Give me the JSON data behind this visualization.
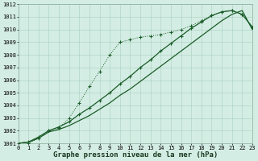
{
  "title": "Graphe pression niveau de la mer (hPa)",
  "background_color": "#d4ede4",
  "grid_color": "#a8cfc0",
  "line_color": "#1a5c28",
  "x_values": [
    0,
    1,
    2,
    3,
    4,
    5,
    6,
    7,
    8,
    9,
    10,
    11,
    12,
    13,
    14,
    15,
    16,
    17,
    18,
    19,
    20,
    21,
    22,
    23
  ],
  "line1_solid": [
    1001.0,
    1001.1,
    1001.4,
    1001.9,
    1002.1,
    1002.4,
    1002.8,
    1003.2,
    1003.7,
    1004.2,
    1004.8,
    1005.3,
    1005.9,
    1006.5,
    1007.1,
    1007.7,
    1008.3,
    1008.9,
    1009.5,
    1010.1,
    1010.7,
    1011.2,
    1011.5,
    1010.0
  ],
  "line2_markers": [
    1000.8,
    1001.0,
    1001.4,
    1002.0,
    1002.2,
    1003.0,
    1004.2,
    1005.5,
    1006.7,
    1008.0,
    1009.0,
    1009.2,
    1009.4,
    1009.5,
    1009.6,
    1009.8,
    1010.0,
    1010.3,
    1010.7,
    1011.1,
    1011.4,
    1011.5,
    1011.2,
    1010.2
  ],
  "line3_solid": [
    1001.0,
    1001.1,
    1001.5,
    1002.0,
    1002.3,
    1002.7,
    1003.3,
    1003.8,
    1004.4,
    1005.0,
    1005.7,
    1006.3,
    1007.0,
    1007.6,
    1008.3,
    1008.9,
    1009.5,
    1010.1,
    1010.6,
    1011.1,
    1011.4,
    1011.5,
    1011.2,
    1010.2
  ],
  "ylim": [
    1001,
    1012
  ],
  "yticks": [
    1001,
    1002,
    1003,
    1004,
    1005,
    1006,
    1007,
    1008,
    1009,
    1010,
    1011,
    1012
  ],
  "xticks": [
    0,
    1,
    2,
    3,
    4,
    5,
    6,
    7,
    8,
    9,
    10,
    11,
    12,
    13,
    14,
    15,
    16,
    17,
    18,
    19,
    20,
    21,
    22,
    23
  ],
  "title_fontsize": 6.5,
  "tick_fontsize": 5.0
}
